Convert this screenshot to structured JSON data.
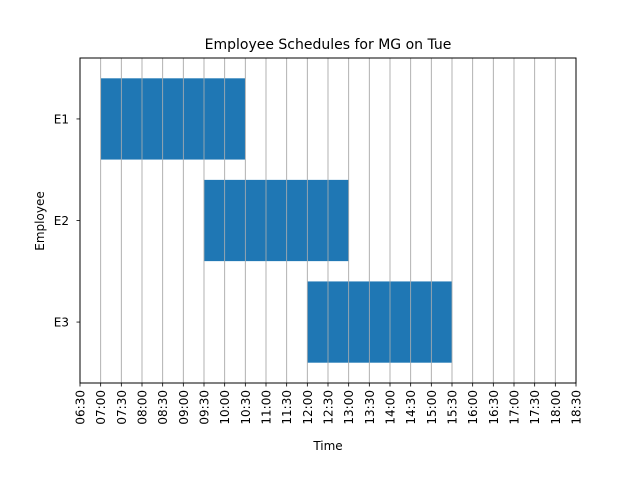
{
  "chart_data": {
    "type": "gantt",
    "title": "Employee Schedules for MG on Tue",
    "xlabel": "Time",
    "ylabel": "Employee",
    "x_ticks": [
      "06:30",
      "07:00",
      "07:30",
      "08:00",
      "08:30",
      "09:00",
      "09:30",
      "10:00",
      "10:30",
      "11:00",
      "11:30",
      "12:00",
      "12:30",
      "13:00",
      "13:30",
      "14:00",
      "14:30",
      "15:00",
      "15:30",
      "16:00",
      "16:30",
      "17:00",
      "17:30",
      "18:00",
      "18:30"
    ],
    "xlim": [
      "06:30",
      "18:30"
    ],
    "categories": [
      "E1",
      "E2",
      "E3"
    ],
    "shifts": [
      {
        "employee": "E1",
        "start": "07:00",
        "end": "10:30"
      },
      {
        "employee": "E2",
        "start": "09:30",
        "end": "13:00"
      },
      {
        "employee": "E3",
        "start": "12:00",
        "end": "15:30"
      }
    ],
    "bar_color": "#1f77b4",
    "grid": "vertical",
    "grid_color": "#b0b0b0"
  }
}
